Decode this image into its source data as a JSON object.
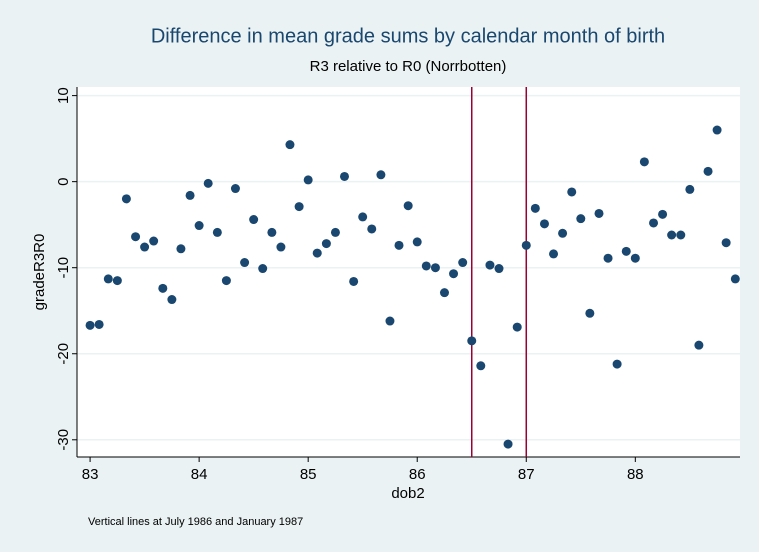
{
  "chart_data": {
    "type": "scatter",
    "title": "Difference in mean grade sums by calendar month of birth",
    "subtitle": "R3 relative to R0 (Norrbotten)",
    "x_label": "dob2",
    "y_label": "gradeR3R0",
    "note": "Vertical lines at July 1986 and January 1987",
    "color": "#1a476f",
    "vline_color": "#990033",
    "vlines": [
      86.5,
      87.0
    ],
    "grid": true,
    "xlim": [
      82.88,
      88.96
    ],
    "ylim": [
      -32.0,
      11.0
    ],
    "xticks": [
      83,
      84,
      85,
      86,
      87,
      88
    ],
    "yticks": [
      -30,
      -20,
      -10,
      0,
      10
    ],
    "x": [
      83.0,
      83.083,
      83.167,
      83.25,
      83.333,
      83.417,
      83.5,
      83.583,
      83.667,
      83.75,
      83.833,
      83.917,
      84.0,
      84.083,
      84.167,
      84.25,
      84.333,
      84.417,
      84.5,
      84.583,
      84.667,
      84.75,
      84.833,
      84.917,
      85.0,
      85.083,
      85.167,
      85.25,
      85.333,
      85.417,
      85.5,
      85.583,
      85.667,
      85.75,
      85.833,
      85.917,
      86.0,
      86.083,
      86.167,
      86.25,
      86.333,
      86.417,
      86.5,
      86.583,
      86.667,
      86.75,
      86.833,
      86.917,
      87.0,
      87.083,
      87.167,
      87.25,
      87.333,
      87.417,
      87.5,
      87.583,
      87.667,
      87.75,
      87.833,
      87.917,
      88.0,
      88.083,
      88.167,
      88.25,
      88.333,
      88.417,
      88.5,
      88.583,
      88.667,
      88.75,
      88.833,
      88.917
    ],
    "values": [
      -16.7,
      -16.6,
      -11.3,
      -11.5,
      -2.0,
      -6.4,
      -7.6,
      -6.9,
      -12.4,
      -13.7,
      -7.8,
      -1.6,
      -5.1,
      -0.2,
      -5.9,
      -11.5,
      -0.8,
      -9.4,
      -4.4,
      -10.1,
      -5.9,
      -7.6,
      4.3,
      -2.9,
      0.2,
      -8.3,
      -7.2,
      -5.9,
      0.6,
      -11.6,
      -4.1,
      -5.5,
      0.8,
      -16.2,
      -7.4,
      -2.8,
      -7.0,
      -9.8,
      -10.0,
      -12.9,
      -10.7,
      -9.4,
      -18.5,
      -21.4,
      -9.7,
      -10.1,
      -30.5,
      -16.9,
      -7.4,
      -3.1,
      -4.9,
      -8.4,
      -6.0,
      -1.2,
      -4.3,
      -15.3,
      -3.7,
      -8.9,
      -21.2,
      -8.1,
      -8.9,
      2.3,
      -4.8,
      -3.8,
      -6.2,
      -6.2,
      -0.9,
      -19.0,
      1.2,
      6.0,
      -7.1,
      -11.3
    ]
  }
}
